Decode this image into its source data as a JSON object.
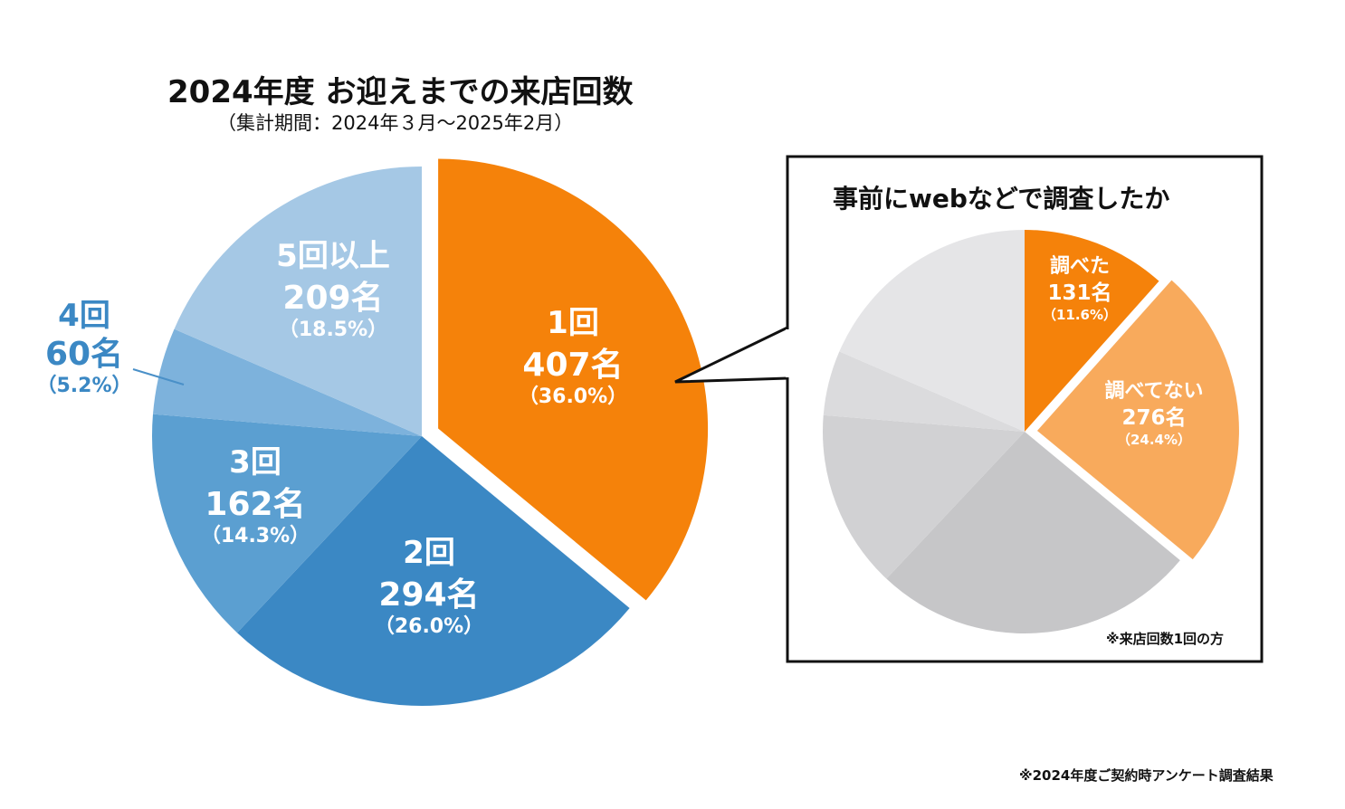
{
  "chart_data": [
    {
      "type": "pie",
      "title": "2024年度 お迎えまでの来店回数",
      "subtitle": "（集計期間：2024年３月〜2025年2月）",
      "start_angle": "12 o'clock, clockwise",
      "slices": [
        {
          "label": "1回",
          "count": "407名",
          "percent_label": "（36.0%）",
          "value": 36.0,
          "color": "#f5820a",
          "exploded": true
        },
        {
          "label": "2回",
          "count": "294名",
          "percent_label": "（26.0%）",
          "value": 26.0,
          "color": "#3b88c4"
        },
        {
          "label": "3回",
          "count": "162名",
          "percent_label": "（14.3%）",
          "value": 14.3,
          "color": "#5b9fd1"
        },
        {
          "label": "4回",
          "count": "60名",
          "percent_label": "（5.2%）",
          "value": 5.2,
          "color": "#7db2dc"
        },
        {
          "label": "5回以上",
          "count": "209名",
          "percent_label": "（18.5%）",
          "value": 18.5,
          "color": "#a5c8e5"
        }
      ]
    },
    {
      "type": "pie",
      "title": "事前にwebなどで調査したか",
      "note": "※来店回数1回の方",
      "slices": [
        {
          "label": "調べた",
          "count": "131名",
          "percent_label": "（11.6%）",
          "value": 11.6,
          "color": "#f5820a"
        },
        {
          "label": "調べてない",
          "count": "276名",
          "percent_label": "（24.4%）",
          "value": 24.4,
          "color": "#f8aa5c",
          "exploded": true
        },
        {
          "label": "",
          "value": 26.0,
          "color": "#c6c6c8"
        },
        {
          "label": "",
          "value": 14.3,
          "color": "#d1d1d3"
        },
        {
          "label": "",
          "value": 5.2,
          "color": "#dbdbdd"
        },
        {
          "label": "",
          "value": 18.5,
          "color": "#e5e5e7"
        }
      ]
    }
  ],
  "footnote": "※2024年度ご契約時アンケート調査結果"
}
